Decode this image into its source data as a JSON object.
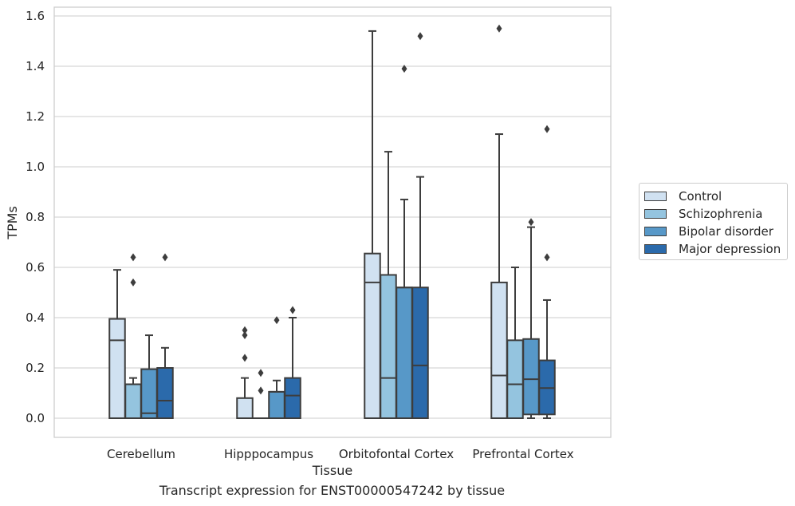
{
  "caption": "Transcript expression for ENST00000547242 by tissue",
  "chart_data": {
    "type": "box",
    "title": "",
    "xlabel": "Tissue",
    "ylabel": "TPMs",
    "ylim": [
      -0.075,
      1.63
    ],
    "yticks": [
      0.0,
      0.2,
      0.4,
      0.6,
      0.8,
      1.0,
      1.2,
      1.4,
      1.6
    ],
    "ytick_labels": [
      "0.0",
      "0.2",
      "0.4",
      "0.6",
      "0.8",
      "1.0",
      "1.2",
      "1.4",
      "1.6"
    ],
    "categories": [
      "Cerebellum",
      "Hipppocampus",
      "Orbitofontal Cortex",
      "Prefrontal Cortex"
    ],
    "grid": "horizontal",
    "legend_position": "right, outside",
    "series": [
      {
        "name": "Control",
        "color": "#d0e1f1",
        "boxes": [
          {
            "whislo": 0.0,
            "q1": 0.0,
            "med": 0.31,
            "q3": 0.395,
            "whishi": 0.59,
            "fliers": []
          },
          {
            "whislo": 0.0,
            "q1": 0.0,
            "med": 0.0,
            "q3": 0.08,
            "whishi": 0.16,
            "fliers": [
              0.24,
              0.33,
              0.35
            ]
          },
          {
            "whislo": 0.0,
            "q1": 0.0,
            "med": 0.54,
            "q3": 0.655,
            "whishi": 1.54,
            "fliers": []
          },
          {
            "whislo": 0.0,
            "q1": 0.0,
            "med": 0.17,
            "q3": 0.54,
            "whishi": 1.13,
            "fliers": [
              1.55
            ]
          }
        ]
      },
      {
        "name": "Schizophrenia",
        "color": "#94c4df",
        "boxes": [
          {
            "whislo": 0.0,
            "q1": 0.0,
            "med": 0.135,
            "q3": 0.135,
            "whishi": 0.16,
            "fliers": [
              0.54,
              0.64
            ]
          },
          {
            "whislo": 0.0,
            "q1": 0.0,
            "med": 0.0,
            "q3": 0.0,
            "whishi": 0.0,
            "fliers": [
              0.11,
              0.18
            ]
          },
          {
            "whislo": 0.0,
            "q1": 0.0,
            "med": 0.16,
            "q3": 0.57,
            "whishi": 1.06,
            "fliers": []
          },
          {
            "whislo": 0.0,
            "q1": 0.0,
            "med": 0.135,
            "q3": 0.31,
            "whishi": 0.6,
            "fliers": []
          }
        ]
      },
      {
        "name": "Bipolar disorder",
        "color": "#5798c8",
        "boxes": [
          {
            "whislo": 0.0,
            "q1": 0.0,
            "med": 0.02,
            "q3": 0.195,
            "whishi": 0.33,
            "fliers": []
          },
          {
            "whislo": 0.0,
            "q1": 0.0,
            "med": 0.105,
            "q3": 0.105,
            "whishi": 0.15,
            "fliers": [
              0.39
            ]
          },
          {
            "whislo": 0.0,
            "q1": 0.0,
            "med": 0.52,
            "q3": 0.52,
            "whishi": 0.87,
            "fliers": [
              1.39
            ]
          },
          {
            "whislo": 0.0,
            "q1": 0.015,
            "med": 0.155,
            "q3": 0.315,
            "whishi": 0.76,
            "fliers": [
              0.78
            ]
          }
        ]
      },
      {
        "name": "Major depression",
        "color": "#2b6aab",
        "boxes": [
          {
            "whislo": 0.0,
            "q1": 0.0,
            "med": 0.07,
            "q3": 0.2,
            "whishi": 0.28,
            "fliers": [
              0.64
            ]
          },
          {
            "whislo": 0.0,
            "q1": 0.0,
            "med": 0.09,
            "q3": 0.16,
            "whishi": 0.4,
            "fliers": [
              0.43
            ]
          },
          {
            "whislo": 0.0,
            "q1": 0.0,
            "med": 0.21,
            "q3": 0.52,
            "whishi": 0.96,
            "fliers": [
              1.52
            ]
          },
          {
            "whislo": 0.0,
            "q1": 0.015,
            "med": 0.12,
            "q3": 0.23,
            "whishi": 0.47,
            "fliers": [
              0.64,
              1.15
            ]
          }
        ]
      }
    ]
  }
}
